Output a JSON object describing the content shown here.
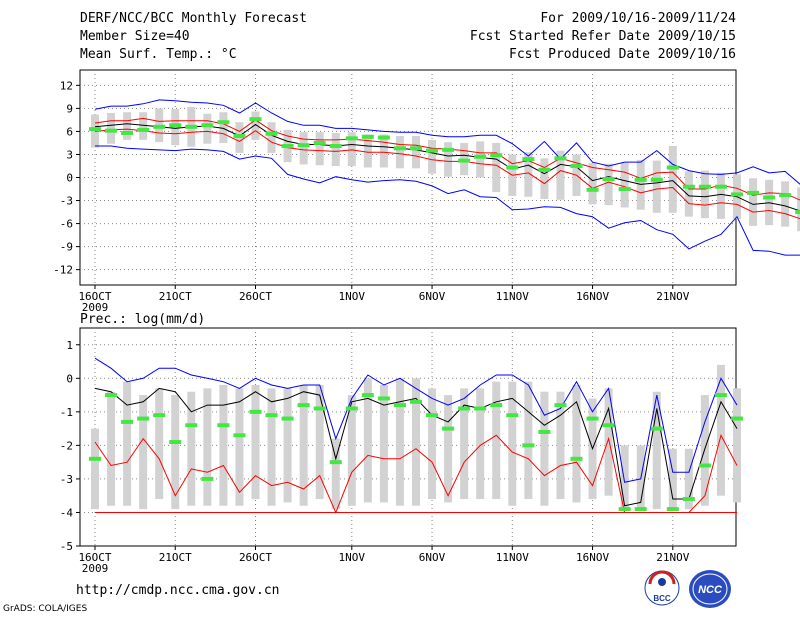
{
  "header": {
    "title": "DERF/NCC/BCC Monthly Forecast",
    "member_size": "Member Size=40",
    "variable": "Mean Surf. Temp.: °C",
    "period": "For 2009/10/16-2009/11/24",
    "started": "Fcst Started Refer Date 2009/10/15",
    "produced": "Fcst Produced Date 2009/10/16"
  },
  "chart_data": [
    {
      "type": "line",
      "title": "Mean Surf. Temp.: °C",
      "x_start_label_year": "2009",
      "ylim": [
        -14,
        14
      ],
      "yticks": [
        "12",
        "9",
        "6",
        "3",
        "0",
        "-3",
        "-6",
        "-9",
        "-12"
      ],
      "ytick_values": [
        12,
        9,
        6,
        3,
        0,
        -3,
        -6,
        -9,
        -12
      ],
      "xticks": [
        "16OCT",
        "21OCT",
        "26OCT",
        "1NOV",
        "6NOV",
        "11NOV",
        "16NOV",
        "21NOV"
      ],
      "xtick_days": [
        0,
        5,
        10,
        16,
        21,
        26,
        31,
        36
      ],
      "series": [
        {
          "name": "upper",
          "color": "#0000ff",
          "values": [
            8.9,
            9.3,
            9.3,
            9.6,
            10.1,
            10.0,
            9.8,
            9.7,
            9.4,
            8.4,
            9.7,
            8.4,
            7.3,
            6.8,
            6.8,
            6.4,
            6.4,
            6.2,
            6.0,
            5.9,
            5.9,
            5.5,
            5.3,
            5.3,
            5.5,
            5.5,
            4.4,
            2.8,
            4.7,
            2.4,
            4.5,
            2.0,
            1.5,
            2.0,
            2.0,
            3.5,
            1.7,
            0.9,
            0.5,
            0.4,
            0.6,
            1.4,
            0.6,
            0.8,
            -1.0
          ]
        },
        {
          "name": "p75",
          "color": "#ff0000",
          "values": [
            7.1,
            7.4,
            7.4,
            7.7,
            7.3,
            7.4,
            7.4,
            7.4,
            7.0,
            6.0,
            7.5,
            6.1,
            5.4,
            5.0,
            4.9,
            4.9,
            5.0,
            4.8,
            4.6,
            4.3,
            4.2,
            3.8,
            3.7,
            3.5,
            3.2,
            3.2,
            1.8,
            2.2,
            1.3,
            2.5,
            1.9,
            1.3,
            1.0,
            0.7,
            -0.1,
            0.6,
            0.7,
            -1.5,
            -1.5,
            -1.0,
            -1.4,
            -2.3,
            -2.0,
            -2.1,
            -3.0
          ]
        },
        {
          "name": "mean",
          "color": "#000000",
          "values": [
            6.6,
            6.8,
            7.0,
            6.8,
            6.6,
            6.4,
            6.6,
            6.7,
            6.4,
            5.4,
            6.9,
            5.5,
            4.7,
            4.3,
            4.3,
            4.1,
            4.3,
            4.1,
            4.0,
            3.8,
            3.6,
            3.2,
            2.8,
            2.9,
            2.6,
            2.4,
            1.1,
            1.6,
            0.5,
            1.7,
            1.4,
            -0.4,
            0.1,
            -0.4,
            -0.9,
            -0.7,
            -0.4,
            -2.4,
            -2.5,
            -2.2,
            -2.5,
            -3.5,
            -3.3,
            -3.7,
            -4.4
          ]
        },
        {
          "name": "p25",
          "color": "#ff0000",
          "values": [
            6.0,
            6.2,
            6.3,
            6.1,
            5.8,
            5.7,
            5.9,
            6.0,
            5.7,
            4.7,
            6.1,
            4.6,
            3.9,
            3.6,
            3.5,
            3.4,
            3.6,
            3.3,
            3.3,
            3.1,
            2.8,
            2.3,
            2.1,
            2.1,
            1.8,
            1.6,
            0.3,
            0.6,
            -0.8,
            0.9,
            0.3,
            -1.4,
            -0.6,
            -1.2,
            -2.0,
            -1.5,
            -1.3,
            -3.4,
            -3.6,
            -3.3,
            -3.5,
            -4.5,
            -4.3,
            -4.7,
            -5.4
          ]
        },
        {
          "name": "lower",
          "color": "#0000ff",
          "values": [
            4.1,
            4.1,
            3.8,
            3.7,
            3.6,
            3.5,
            3.7,
            3.6,
            3.4,
            2.4,
            2.8,
            2.5,
            0.4,
            -0.2,
            -0.7,
            0.1,
            -0.3,
            -0.6,
            -0.4,
            -0.3,
            -0.5,
            -1.1,
            -2.1,
            -1.6,
            -2.5,
            -2.6,
            -4.2,
            -4.1,
            -3.8,
            -3.9,
            -4.7,
            -5.1,
            -6.6,
            -5.9,
            -5.6,
            -6.8,
            -7.4,
            -9.3,
            -8.3,
            -7.4,
            -5.1,
            -9.5,
            -9.6,
            -10.1,
            -10.1
          ]
        }
      ],
      "observed_green": [
        6.3,
        6.1,
        5.8,
        6.2,
        6.6,
        6.8,
        6.6,
        6.8,
        7.2,
        5.4,
        7.6,
        5.7,
        4.1,
        4.2,
        4.5,
        4.1,
        5.1,
        5.3,
        5.2,
        3.8,
        3.8,
        3.5,
        3.6,
        2.2,
        2.7,
        2.9,
        1.3,
        2.4,
        1.0,
        2.5,
        1.5,
        -1.6,
        -0.2,
        -1.5,
        -0.3,
        -0.3,
        1.3,
        -1.2,
        -1.2,
        -1.2,
        -2.2,
        -2.0,
        -2.6,
        -2.3,
        -4.5
      ],
      "whisker_lo": [
        3.9,
        4.4,
        4.9,
        4.9,
        4.6,
        4.2,
        4.0,
        4.4,
        4.5,
        3.2,
        4.9,
        3.2,
        2.0,
        1.7,
        1.6,
        1.5,
        1.5,
        1.3,
        1.3,
        1.2,
        1.2,
        0.5,
        0.1,
        0.3,
        0.0,
        -1.9,
        -2.4,
        -2.5,
        -2.8,
        -2.9,
        -2.4,
        -3.5,
        -3.6,
        -3.9,
        -4.2,
        -4.6,
        -4.6,
        -5.1,
        -5.3,
        -5.4,
        -5.4,
        -6.3,
        -6.2,
        -6.4,
        -7.0
      ],
      "whisker_hi": [
        8.2,
        8.4,
        8.5,
        8.5,
        9.0,
        8.9,
        9.2,
        8.3,
        8.5,
        7.2,
        8.6,
        7.2,
        6.2,
        5.9,
        5.9,
        5.8,
        5.9,
        5.6,
        5.6,
        5.4,
        5.4,
        4.9,
        4.6,
        4.5,
        4.7,
        4.5,
        3.0,
        3.3,
        2.5,
        3.5,
        3.0,
        1.9,
        1.8,
        1.9,
        2.3,
        2.2,
        4.1,
        0.8,
        0.9,
        0.6,
        0.4,
        -0.1,
        -0.3,
        -0.5,
        -1.3
      ]
    },
    {
      "type": "line",
      "title": "Prec.: log(mm/d)",
      "x_start_label_year": "2009",
      "ylim": [
        -5,
        1.5
      ],
      "yticks": [
        "1",
        "0",
        "-1",
        "-2",
        "-3",
        "-4",
        "-5"
      ],
      "ytick_values": [
        1,
        0,
        -1,
        -2,
        -3,
        -4,
        -5
      ],
      "xticks": [
        "16OCT",
        "21OCT",
        "26OCT",
        "1NOV",
        "6NOV",
        "11NOV",
        "16NOV",
        "21NOV"
      ],
      "xtick_days": [
        0,
        5,
        10,
        16,
        21,
        26,
        31,
        36
      ],
      "series": [
        {
          "name": "upper",
          "color": "#0000ff",
          "values": [
            0.6,
            0.3,
            -0.1,
            0.0,
            0.3,
            0.3,
            0.1,
            0.0,
            -0.1,
            -0.3,
            0.0,
            -0.2,
            -0.3,
            -0.2,
            -0.2,
            -1.8,
            -0.6,
            0.1,
            -0.2,
            0.0,
            -0.3,
            -0.6,
            -0.8,
            -0.6,
            -0.2,
            0.1,
            0.1,
            -0.2,
            -1.1,
            -0.9,
            -0.1,
            -1.0,
            -0.3,
            -3.1,
            -3.0,
            -0.5,
            -2.8,
            -2.8,
            -1.3,
            0.0,
            -0.8
          ]
        },
        {
          "name": "mean",
          "color": "#000000",
          "values": [
            -0.3,
            -0.4,
            -0.8,
            -0.7,
            -0.3,
            -0.4,
            -1.0,
            -0.8,
            -0.8,
            -0.7,
            -0.4,
            -0.7,
            -0.6,
            -0.4,
            -0.5,
            -2.4,
            -0.7,
            -0.6,
            -0.8,
            -0.7,
            -0.6,
            -1.1,
            -1.3,
            -0.8,
            -0.9,
            -0.7,
            -0.6,
            -1.0,
            -1.4,
            -1.1,
            -0.7,
            -2.1,
            -0.9,
            -3.8,
            -3.7,
            -0.9,
            -3.6,
            -3.6,
            -2.1,
            -0.7,
            -1.5
          ]
        },
        {
          "name": "lower",
          "color": "#ff0000",
          "values": [
            -1.9,
            -2.6,
            -2.5,
            -1.8,
            -2.4,
            -3.5,
            -2.7,
            -2.8,
            -2.6,
            -3.4,
            -2.9,
            -3.2,
            -3.1,
            -3.3,
            -2.9,
            -4.0,
            -2.8,
            -2.3,
            -2.4,
            -2.4,
            -2.1,
            -2.5,
            -3.5,
            -2.5,
            -2.0,
            -1.7,
            -2.2,
            -2.4,
            -2.9,
            -2.6,
            -2.5,
            -3.2,
            -1.8,
            -4.0,
            -4.0,
            -4.0,
            -4.0,
            -4.0,
            -3.5,
            -1.7,
            -2.6
          ]
        }
      ],
      "floor": -4.0,
      "observed_green": [
        -2.4,
        -0.5,
        -1.3,
        -1.2,
        -1.1,
        -1.9,
        -1.4,
        -3.0,
        -1.4,
        -1.7,
        -1.0,
        -1.1,
        -1.2,
        -0.8,
        -0.9,
        -2.5,
        -0.9,
        -0.5,
        -0.6,
        -0.8,
        -0.7,
        -1.1,
        -1.5,
        -0.9,
        -0.9,
        -0.8,
        -1.1,
        -2.0,
        -1.6,
        -0.8,
        -2.4,
        -1.2,
        -1.4,
        -3.9,
        -3.9,
        -1.5,
        -3.9,
        -3.6,
        -2.6,
        -0.5,
        -1.2
      ],
      "whisker_lo": [
        -3.9,
        -3.8,
        -3.8,
        -3.9,
        -3.6,
        -3.9,
        -3.8,
        -3.8,
        -3.8,
        -3.8,
        -3.6,
        -3.8,
        -3.7,
        -3.8,
        -3.6,
        -3.9,
        -3.8,
        -3.7,
        -3.7,
        -3.8,
        -3.8,
        -3.6,
        -3.7,
        -3.6,
        -3.6,
        -3.6,
        -3.8,
        -3.6,
        -3.8,
        -3.6,
        -3.7,
        -3.6,
        -3.5,
        -3.9,
        -3.9,
        -3.9,
        -3.9,
        -3.9,
        -3.8,
        -3.5,
        -3.7
      ],
      "whisker_hi": [
        -1.5,
        -0.4,
        -0.1,
        -0.5,
        -0.3,
        -0.5,
        -0.4,
        -0.3,
        -0.2,
        -0.3,
        -0.2,
        -0.3,
        -0.3,
        -0.2,
        -0.2,
        -1.8,
        -0.5,
        0.0,
        -0.2,
        0.0,
        0.0,
        -0.3,
        -0.5,
        -0.3,
        -0.3,
        -0.1,
        -0.1,
        -0.1,
        -0.4,
        -0.4,
        -0.2,
        -0.6,
        -0.3,
        -2.0,
        -2.0,
        -0.4,
        -2.1,
        -2.1,
        -0.5,
        0.4,
        -0.3
      ]
    }
  ],
  "labels": {
    "precip_title": "Prec.: log(mm/d)",
    "year": "2009"
  },
  "footer": {
    "url": "http://cmdp.ncc.cma.gov.cn",
    "grads": "GrADS: COLA/IGES",
    "logo_bcc": "BCC",
    "logo_ncc": "NCC"
  }
}
